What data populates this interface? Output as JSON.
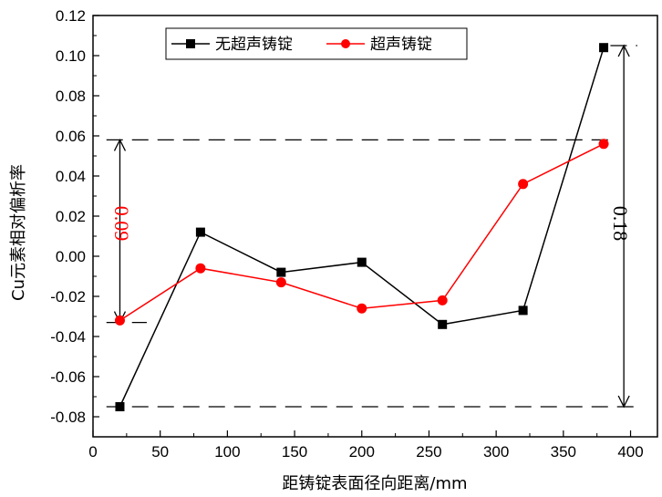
{
  "chart_data": {
    "type": "line",
    "xlabel": "距铸锭表面径向距离/mm",
    "ylabel": "Cu元素相对偏析率",
    "xlim": [
      0,
      420
    ],
    "ylim": [
      -0.09,
      0.12
    ],
    "x_ticks": [
      "0",
      "50",
      "100",
      "150",
      "200",
      "250",
      "300",
      "350",
      "400"
    ],
    "y_ticks": [
      "-0.08",
      "-0.06",
      "-0.04",
      "-0.02",
      "0.00",
      "0.02",
      "0.04",
      "0.06",
      "0.08",
      "0.10",
      "0.12"
    ],
    "grid": false,
    "legend_position": "top-center",
    "series": [
      {
        "name": "无超声铸锭",
        "color": "#000000",
        "marker": "square",
        "x": [
          20,
          80,
          140,
          200,
          260,
          320,
          380
        ],
        "y": [
          -0.075,
          0.012,
          -0.008,
          -0.003,
          -0.034,
          -0.027,
          0.104
        ]
      },
      {
        "name": "超声铸锭",
        "color": "#ff0000",
        "marker": "circle",
        "x": [
          20,
          80,
          140,
          200,
          260,
          320,
          380
        ],
        "y": [
          -0.032,
          -0.006,
          -0.013,
          -0.026,
          -0.022,
          0.036,
          0.056
        ]
      }
    ],
    "annotations": [
      {
        "text": "0.09",
        "color": "#ff0000",
        "y_from": -0.033,
        "y_to": 0.058,
        "at_x": 20
      },
      {
        "text": "0.18",
        "color": "#000000",
        "y_from": -0.075,
        "y_to": 0.105,
        "at_x": 395
      }
    ]
  }
}
